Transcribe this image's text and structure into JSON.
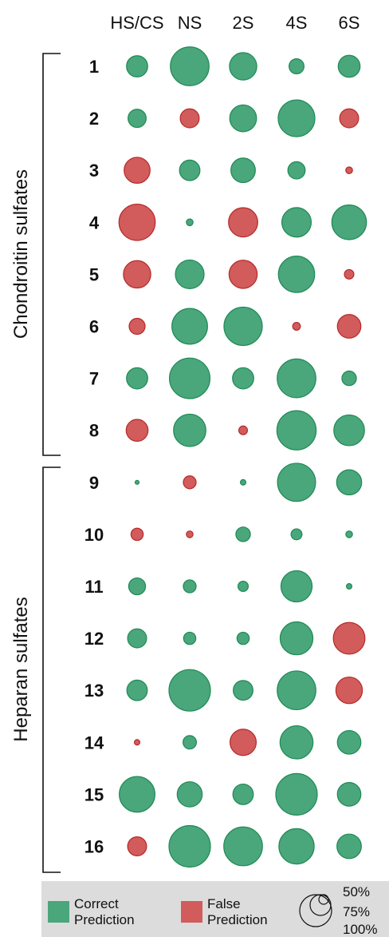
{
  "chart_data": {
    "type": "bubble-matrix",
    "columns": [
      "HS/CS",
      "NS",
      "2S",
      "4S",
      "6S"
    ],
    "rows": [
      "1",
      "2",
      "3",
      "4",
      "5",
      "6",
      "7",
      "8",
      "9",
      "10",
      "11",
      "12",
      "13",
      "14",
      "15",
      "16"
    ],
    "groups": [
      {
        "label": "Chondroitin sulfates",
        "rows": [
          "1",
          "2",
          "3",
          "4",
          "5",
          "6",
          "7",
          "8"
        ]
      },
      {
        "label": "Heparan sulfates",
        "rows": [
          "9",
          "10",
          "11",
          "12",
          "13",
          "14",
          "15",
          "16"
        ]
      }
    ],
    "size_unit": "percent",
    "cells": [
      [
        {
          "v": 30,
          "c": "correct"
        },
        {
          "v": 100,
          "c": "correct"
        },
        {
          "v": 50,
          "c": "correct"
        },
        {
          "v": 15,
          "c": "correct"
        },
        {
          "v": 32,
          "c": "correct"
        }
      ],
      [
        {
          "v": 22,
          "c": "correct"
        },
        {
          "v": 24,
          "c": "false"
        },
        {
          "v": 48,
          "c": "correct"
        },
        {
          "v": 90,
          "c": "correct"
        },
        {
          "v": 24,
          "c": "false"
        }
      ],
      [
        {
          "v": 45,
          "c": "false"
        },
        {
          "v": 28,
          "c": "correct"
        },
        {
          "v": 40,
          "c": "correct"
        },
        {
          "v": 20,
          "c": "correct"
        },
        {
          "v": 3,
          "c": "false"
        }
      ],
      [
        {
          "v": 88,
          "c": "false"
        },
        {
          "v": 3,
          "c": "correct"
        },
        {
          "v": 57,
          "c": "false"
        },
        {
          "v": 58,
          "c": "correct"
        },
        {
          "v": 80,
          "c": "correct"
        }
      ],
      [
        {
          "v": 50,
          "c": "false"
        },
        {
          "v": 55,
          "c": "correct"
        },
        {
          "v": 53,
          "c": "false"
        },
        {
          "v": 88,
          "c": "correct"
        },
        {
          "v": 6,
          "c": "false"
        }
      ],
      [
        {
          "v": 17,
          "c": "false"
        },
        {
          "v": 85,
          "c": "correct"
        },
        {
          "v": 98,
          "c": "correct"
        },
        {
          "v": 4,
          "c": "false"
        },
        {
          "v": 37,
          "c": "false"
        }
      ],
      [
        {
          "v": 30,
          "c": "correct"
        },
        {
          "v": 110,
          "c": "correct"
        },
        {
          "v": 30,
          "c": "correct"
        },
        {
          "v": 100,
          "c": "correct"
        },
        {
          "v": 14,
          "c": "correct"
        }
      ],
      [
        {
          "v": 32,
          "c": "false"
        },
        {
          "v": 70,
          "c": "correct"
        },
        {
          "v": 5,
          "c": "false"
        },
        {
          "v": 103,
          "c": "correct"
        },
        {
          "v": 63,
          "c": "correct"
        }
      ],
      [
        {
          "v": 1,
          "c": "correct"
        },
        {
          "v": 11,
          "c": "false"
        },
        {
          "v": 2,
          "c": "correct"
        },
        {
          "v": 97,
          "c": "correct"
        },
        {
          "v": 42,
          "c": "correct"
        }
      ],
      [
        {
          "v": 10,
          "c": "false"
        },
        {
          "v": 3,
          "c": "false"
        },
        {
          "v": 14,
          "c": "correct"
        },
        {
          "v": 8,
          "c": "correct"
        },
        {
          "v": 3,
          "c": "correct"
        }
      ],
      [
        {
          "v": 19,
          "c": "correct"
        },
        {
          "v": 11,
          "c": "correct"
        },
        {
          "v": 7,
          "c": "correct"
        },
        {
          "v": 65,
          "c": "correct"
        },
        {
          "v": 2,
          "c": "correct"
        }
      ],
      [
        {
          "v": 24,
          "c": "correct"
        },
        {
          "v": 10,
          "c": "correct"
        },
        {
          "v": 10,
          "c": "correct"
        },
        {
          "v": 72,
          "c": "correct"
        },
        {
          "v": 67,
          "c": "false"
        }
      ],
      [
        {
          "v": 28,
          "c": "correct"
        },
        {
          "v": 115,
          "c": "correct"
        },
        {
          "v": 26,
          "c": "correct"
        },
        {
          "v": 100,
          "c": "correct"
        },
        {
          "v": 47,
          "c": "false"
        }
      ],
      [
        {
          "v": 2,
          "c": "false"
        },
        {
          "v": 12,
          "c": "correct"
        },
        {
          "v": 46,
          "c": "false"
        },
        {
          "v": 73,
          "c": "correct"
        },
        {
          "v": 37,
          "c": "correct"
        }
      ],
      [
        {
          "v": 85,
          "c": "correct"
        },
        {
          "v": 42,
          "c": "correct"
        },
        {
          "v": 28,
          "c": "correct"
        },
        {
          "v": 115,
          "c": "correct"
        },
        {
          "v": 37,
          "c": "correct"
        }
      ],
      [
        {
          "v": 24,
          "c": "false"
        },
        {
          "v": 115,
          "c": "correct"
        },
        {
          "v": 100,
          "c": "correct"
        },
        {
          "v": 83,
          "c": "correct"
        },
        {
          "v": 40,
          "c": "correct"
        }
      ]
    ],
    "legend": {
      "correct_label": [
        "Correct",
        "Prediction"
      ],
      "false_label": [
        "False",
        "Prediction"
      ],
      "size_labels": [
        "50%",
        "75%",
        "100%"
      ]
    },
    "colors": {
      "correct_fill": "#4aa67b",
      "correct_stroke": "#1e8a55",
      "false_fill": "#d25b5b",
      "false_stroke": "#b52a2a",
      "legend_bg": "#dcdcdc"
    }
  }
}
